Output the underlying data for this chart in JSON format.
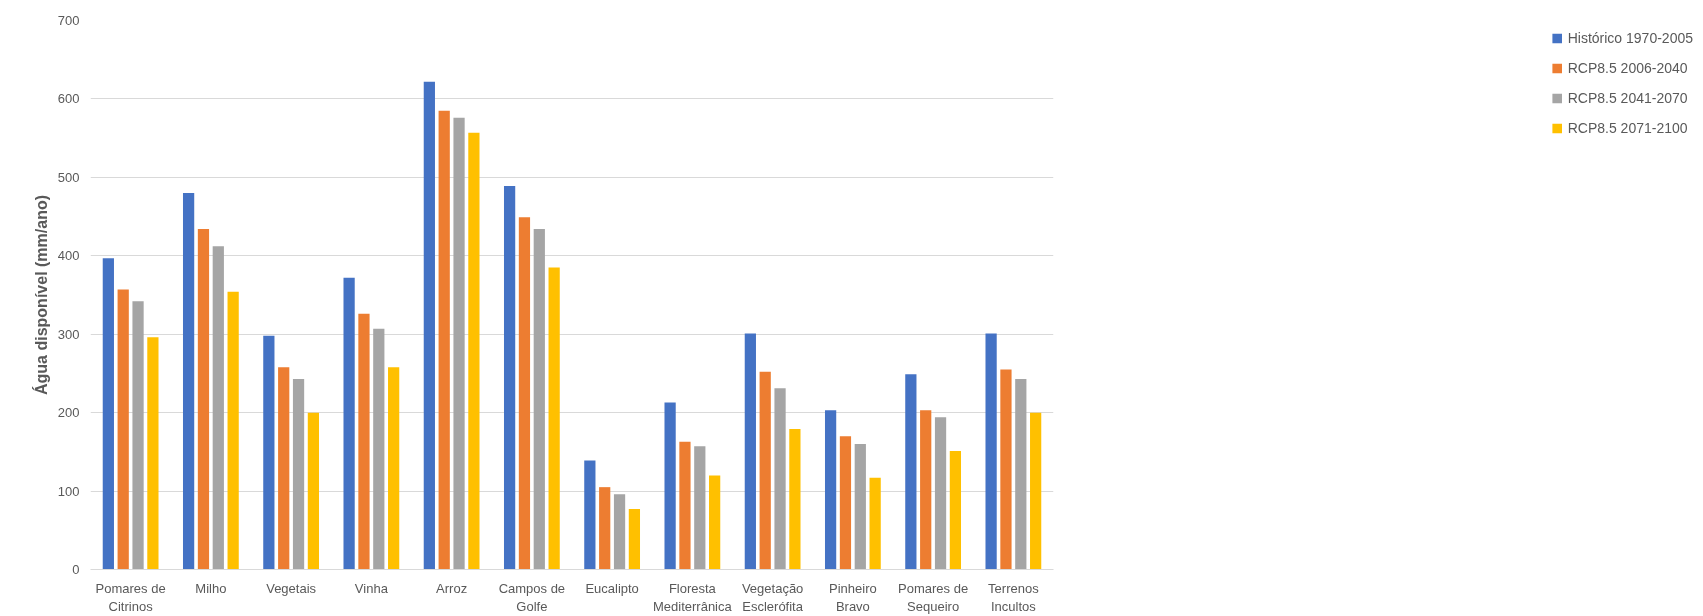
{
  "chart_data": {
    "type": "bar",
    "ylabel": "Água disponível (mm/ano)",
    "categories": [
      "Pomares de\nCitrinos",
      "Milho",
      "Vegetais",
      "Vinha",
      "Arroz",
      "Campos de\nGolfe",
      "Eucalipto",
      "Floresta\nMediterrânica",
      "Vegetação\nEsclerófita",
      "Pinheiro\nBravo",
      "Pomares de\nSequeiro",
      "Terrenos\nIncultos"
    ],
    "series": [
      {
        "name": "Histórico 1970-2005",
        "color": "#4472c4",
        "values": [
          397,
          480,
          298,
          372,
          622,
          489,
          139,
          213,
          301,
          203,
          249,
          301
        ]
      },
      {
        "name": "RCP8.5 2006-2040",
        "color": "#ed7d31",
        "values": [
          357,
          434,
          258,
          326,
          585,
          449,
          105,
          163,
          252,
          170,
          203,
          255
        ]
      },
      {
        "name": "RCP8.5 2041-2070",
        "color": "#a5a5a5",
        "values": [
          342,
          412,
          243,
          307,
          576,
          434,
          96,
          157,
          231,
          160,
          194,
          243
        ]
      },
      {
        "name": "RCP8.5 2071-2100",
        "color": "#ffc000",
        "values": [
          296,
          354,
          200,
          258,
          557,
          385,
          77,
          120,
          179,
          117,
          151,
          200
        ]
      }
    ],
    "ylim": [
      0,
      700
    ],
    "yticks": [
      0,
      100,
      200,
      300,
      400,
      500,
      600,
      700
    ],
    "grid": "y",
    "legend": "right"
  }
}
